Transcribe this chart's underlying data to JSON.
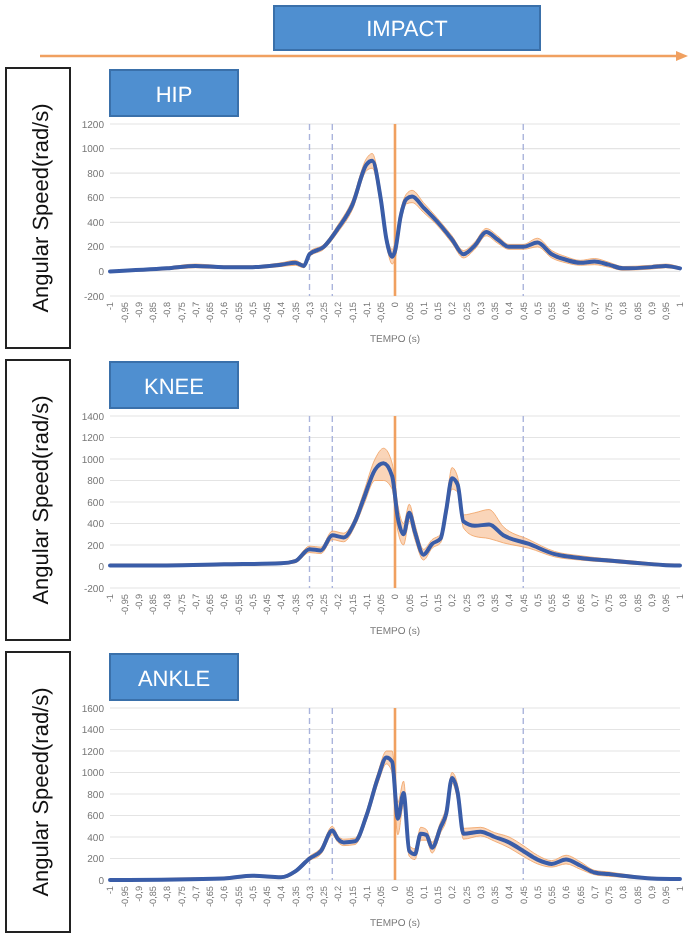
{
  "chart_data": [
    {
      "type": "line",
      "title": "HIP",
      "xlabel": "TEMPO (s)",
      "ylabel": "Angular Speed(rad/s)",
      "annotations": [
        "IMPACT"
      ],
      "xlim": [
        -1,
        1
      ],
      "ylim": [
        -200,
        1200
      ],
      "yticks": [
        -200,
        0,
        200,
        400,
        600,
        800,
        1000,
        1200
      ],
      "xticks": [
        -1,
        {
          "value": -0.95,
          "label": "-0,95"
        },
        {
          "value": -0.9,
          "label": "-0,9"
        },
        {
          "value": -0.85,
          "label": "-0,85"
        },
        {
          "value": -0.8,
          "label": "-0,8"
        },
        {
          "value": -0.75,
          "label": "-0,75"
        },
        {
          "value": -0.7,
          "label": "-0,7"
        },
        {
          "value": -0.65,
          "label": "-0,65"
        },
        {
          "value": -0.6,
          "label": "-0,6"
        },
        {
          "value": -0.55,
          "label": "-0,55"
        },
        {
          "value": -0.5,
          "label": "-0,5"
        },
        {
          "value": -0.45,
          "label": "-0,45"
        },
        {
          "value": -0.4,
          "label": "-0,4"
        },
        {
          "value": -0.35,
          "label": "-0,35"
        },
        {
          "value": -0.3,
          "label": "-0,3"
        },
        {
          "value": -0.25,
          "label": "-0,25"
        },
        {
          "value": -0.2,
          "label": "-0,2"
        },
        {
          "value": -0.15,
          "label": "-0,15"
        },
        {
          "value": -0.1,
          "label": "-0,1"
        },
        {
          "value": -0.05,
          "label": "-0,05"
        },
        0,
        {
          "value": 0.05,
          "label": "0,05"
        },
        {
          "value": 0.1,
          "label": "0,1"
        },
        {
          "value": 0.15,
          "label": "0,15"
        },
        {
          "value": 0.2,
          "label": "0,2"
        },
        {
          "value": 0.25,
          "label": "0,25"
        },
        {
          "value": 0.3,
          "label": "0,3"
        },
        {
          "value": 0.35,
          "label": "0,35"
        },
        {
          "value": 0.4,
          "label": "0,4"
        },
        {
          "value": 0.45,
          "label": "0,45"
        },
        {
          "value": 0.5,
          "label": "0,5"
        },
        {
          "value": 0.55,
          "label": "0,55"
        },
        {
          "value": 0.6,
          "label": "0,6"
        },
        {
          "value": 0.65,
          "label": "0,65"
        },
        {
          "value": 0.7,
          "label": "0,7"
        },
        {
          "value": 0.75,
          "label": "0,75"
        },
        {
          "value": 0.8,
          "label": "0,8"
        },
        {
          "value": 0.85,
          "label": "0,85"
        },
        {
          "value": 0.9,
          "label": "0,9"
        },
        {
          "value": 0.95,
          "label": "0,95"
        },
        1
      ],
      "grid": "y",
      "ref_lines": [
        {
          "axis": "x",
          "value": -0.3,
          "color": "#aab4dc",
          "line_style": "dashed"
        },
        {
          "axis": "x",
          "value": -0.22,
          "color": "#aab4dc",
          "line_style": "dashed"
        },
        {
          "axis": "x",
          "value": 0,
          "color": "#f0a060",
          "line_style": "solid"
        },
        {
          "axis": "x",
          "value": 0.45,
          "color": "#aab4dc",
          "line_style": "dashed"
        }
      ],
      "series": [
        {
          "color": "#3a5da8",
          "x": [
            -1,
            -0.8,
            -0.7,
            -0.6,
            -0.5,
            -0.4,
            -0.35,
            -0.32,
            -0.3,
            -0.25,
            -0.2,
            -0.15,
            -0.1,
            -0.08,
            -0.05,
            -0.03,
            -0.01,
            0,
            0.02,
            0.04,
            0.06,
            0.1,
            0.15,
            0.2,
            0.24,
            0.28,
            0.32,
            0.36,
            0.4,
            0.45,
            0.5,
            0.55,
            0.6,
            0.65,
            0.7,
            0.75,
            0.8,
            0.9,
            0.95,
            1
          ],
          "values": [
            0,
            25,
            45,
            35,
            35,
            55,
            70,
            45,
            140,
            200,
            350,
            540,
            870,
            900,
            590,
            260,
            120,
            165,
            450,
            590,
            610,
            520,
            400,
            260,
            140,
            210,
            320,
            260,
            200,
            200,
            235,
            140,
            95,
            70,
            80,
            55,
            25,
            35,
            45,
            25
          ],
          "lower": [
            -5,
            15,
            30,
            25,
            25,
            40,
            50,
            30,
            120,
            180,
            320,
            500,
            820,
            840,
            540,
            220,
            60,
            100,
            400,
            550,
            560,
            480,
            370,
            230,
            110,
            180,
            290,
            230,
            180,
            180,
            200,
            110,
            70,
            50,
            55,
            35,
            10,
            20,
            30,
            15
          ],
          "upper": [
            5,
            35,
            60,
            45,
            45,
            70,
            90,
            60,
            160,
            220,
            380,
            580,
            920,
            960,
            640,
            300,
            180,
            230,
            500,
            630,
            660,
            560,
            430,
            290,
            170,
            240,
            350,
            290,
            220,
            220,
            270,
            170,
            120,
            90,
            105,
            75,
            40,
            50,
            60,
            35
          ]
        }
      ]
    },
    {
      "type": "line",
      "title": "KNEE",
      "xlabel": "TEMPO (s)",
      "ylabel": "Angular Speed(rad/s)",
      "xlim": [
        -1,
        1
      ],
      "ylim": [
        -200,
        1400
      ],
      "yticks": [
        -200,
        0,
        200,
        400,
        600,
        800,
        1000,
        1200,
        1400
      ],
      "xticks": [
        -1,
        {
          "value": -0.95,
          "label": "-0,95"
        },
        {
          "value": -0.9,
          "label": "-0,9"
        },
        {
          "value": -0.85,
          "label": "-0,85"
        },
        {
          "value": -0.8,
          "label": "-0,8"
        },
        {
          "value": -0.75,
          "label": "-0,75"
        },
        {
          "value": -0.7,
          "label": "-0,7"
        },
        {
          "value": -0.65,
          "label": "-0,65"
        },
        {
          "value": -0.6,
          "label": "-0,6"
        },
        {
          "value": -0.55,
          "label": "-0,55"
        },
        {
          "value": -0.5,
          "label": "-0,5"
        },
        {
          "value": -0.45,
          "label": "-0,45"
        },
        {
          "value": -0.4,
          "label": "-0,4"
        },
        {
          "value": -0.35,
          "label": "-0,35"
        },
        {
          "value": -0.3,
          "label": "-0,3"
        },
        {
          "value": -0.25,
          "label": "-0,25"
        },
        {
          "value": -0.2,
          "label": "-0,2"
        },
        {
          "value": -0.15,
          "label": "-0,15"
        },
        {
          "value": -0.1,
          "label": "-0,1"
        },
        {
          "value": -0.05,
          "label": "-0,05"
        },
        0,
        {
          "value": 0.05,
          "label": "0,05"
        },
        {
          "value": 0.1,
          "label": "0,1"
        },
        {
          "value": 0.15,
          "label": "0,15"
        },
        {
          "value": 0.2,
          "label": "0,2"
        },
        {
          "value": 0.25,
          "label": "0,25"
        },
        {
          "value": 0.3,
          "label": "0,3"
        },
        {
          "value": 0.35,
          "label": "0,35"
        },
        {
          "value": 0.4,
          "label": "0,4"
        },
        {
          "value": 0.45,
          "label": "0,45"
        },
        {
          "value": 0.5,
          "label": "0,5"
        },
        {
          "value": 0.55,
          "label": "0,55"
        },
        {
          "value": 0.6,
          "label": "0,6"
        },
        {
          "value": 0.65,
          "label": "0,65"
        },
        {
          "value": 0.7,
          "label": "0,7"
        },
        {
          "value": 0.75,
          "label": "0,75"
        },
        {
          "value": 0.8,
          "label": "0,8"
        },
        {
          "value": 0.85,
          "label": "0,85"
        },
        {
          "value": 0.9,
          "label": "0,9"
        },
        {
          "value": 0.95,
          "label": "0,95"
        },
        1
      ],
      "grid": "y",
      "ref_lines": [
        {
          "axis": "x",
          "value": -0.3,
          "color": "#aab4dc",
          "line_style": "dashed"
        },
        {
          "axis": "x",
          "value": -0.22,
          "color": "#aab4dc",
          "line_style": "dashed"
        },
        {
          "axis": "x",
          "value": 0,
          "color": "#f0a060",
          "line_style": "solid"
        },
        {
          "axis": "x",
          "value": 0.45,
          "color": "#aab4dc",
          "line_style": "dashed"
        }
      ],
      "series": [
        {
          "color": "#3a5da8",
          "x": [
            -1,
            -0.8,
            -0.6,
            -0.4,
            -0.35,
            -0.3,
            -0.26,
            -0.22,
            -0.18,
            -0.14,
            -0.11,
            -0.07,
            -0.04,
            -0.01,
            0.01,
            0.03,
            0.05,
            0.07,
            0.1,
            0.13,
            0.16,
            0.18,
            0.2,
            0.22,
            0.24,
            0.28,
            0.33,
            0.38,
            0.47,
            0.56,
            0.65,
            0.75,
            0.84,
            0.94,
            1
          ],
          "values": [
            10,
            10,
            20,
            30,
            50,
            160,
            150,
            290,
            270,
            420,
            630,
            900,
            960,
            840,
            450,
            300,
            500,
            320,
            110,
            210,
            260,
            530,
            820,
            760,
            420,
            380,
            390,
            290,
            210,
            115,
            80,
            55,
            35,
            15,
            10
          ],
          "lower": [
            0,
            0,
            10,
            20,
            35,
            130,
            120,
            250,
            230,
            380,
            570,
            800,
            800,
            720,
            330,
            200,
            420,
            250,
            60,
            170,
            220,
            470,
            720,
            690,
            360,
            280,
            260,
            220,
            170,
            90,
            60,
            40,
            20,
            5,
            0
          ],
          "upper": [
            20,
            20,
            30,
            40,
            65,
            190,
            180,
            330,
            310,
            460,
            690,
            1000,
            1100,
            960,
            570,
            400,
            580,
            390,
            160,
            250,
            300,
            590,
            920,
            830,
            480,
            500,
            530,
            370,
            250,
            140,
            100,
            70,
            50,
            25,
            20
          ]
        }
      ]
    },
    {
      "type": "line",
      "title": "ANKLE",
      "xlabel": "TEMPO (s)",
      "ylabel": "Angular Speed(rad/s)",
      "xlim": [
        -1,
        1
      ],
      "ylim": [
        0,
        1600
      ],
      "yticks": [
        0,
        200,
        400,
        600,
        800,
        1000,
        1200,
        1400,
        1600
      ],
      "xticks": [
        -1,
        {
          "value": -0.95,
          "label": "-0,95"
        },
        {
          "value": -0.9,
          "label": "-0,9"
        },
        {
          "value": -0.85,
          "label": "-0,85"
        },
        {
          "value": -0.8,
          "label": "-0,8"
        },
        {
          "value": -0.75,
          "label": "-0,75"
        },
        {
          "value": -0.7,
          "label": "-0,7"
        },
        {
          "value": -0.65,
          "label": "-0,65"
        },
        {
          "value": -0.6,
          "label": "-0,6"
        },
        {
          "value": -0.55,
          "label": "-0,55"
        },
        {
          "value": -0.5,
          "label": "-0,5"
        },
        {
          "value": -0.45,
          "label": "-0,45"
        },
        {
          "value": -0.4,
          "label": "-0,4"
        },
        {
          "value": -0.35,
          "label": "-0,35"
        },
        {
          "value": -0.3,
          "label": "-0,3"
        },
        {
          "value": -0.25,
          "label": "-0,25"
        },
        {
          "value": -0.2,
          "label": "-0,2"
        },
        {
          "value": -0.15,
          "label": "-0,15"
        },
        {
          "value": -0.1,
          "label": "-0,1"
        },
        {
          "value": -0.05,
          "label": "-0,05"
        },
        0,
        {
          "value": 0.05,
          "label": "0,05"
        },
        {
          "value": 0.1,
          "label": "0,1"
        },
        {
          "value": 0.15,
          "label": "0,15"
        },
        {
          "value": 0.2,
          "label": "0,2"
        },
        {
          "value": 0.25,
          "label": "0,25"
        },
        {
          "value": 0.3,
          "label": "0,3"
        },
        {
          "value": 0.35,
          "label": "0,35"
        },
        {
          "value": 0.4,
          "label": "0,4"
        },
        {
          "value": 0.45,
          "label": "0,45"
        },
        {
          "value": 0.5,
          "label": "0,5"
        },
        {
          "value": 0.55,
          "label": "0,55"
        },
        {
          "value": 0.6,
          "label": "0,6"
        },
        {
          "value": 0.65,
          "label": "0,65"
        },
        {
          "value": 0.7,
          "label": "0,7"
        },
        {
          "value": 0.75,
          "label": "0,75"
        },
        {
          "value": 0.8,
          "label": "0,8"
        },
        {
          "value": 0.85,
          "label": "0,85"
        },
        {
          "value": 0.9,
          "label": "0,9"
        },
        {
          "value": 0.95,
          "label": "0,95"
        },
        1
      ],
      "grid": "y",
      "ref_lines": [
        {
          "axis": "x",
          "value": -0.3,
          "color": "#aab4dc",
          "line_style": "dashed"
        },
        {
          "axis": "x",
          "value": -0.22,
          "color": "#aab4dc",
          "line_style": "dashed"
        },
        {
          "axis": "x",
          "value": 0,
          "color": "#f0a060",
          "line_style": "solid"
        },
        {
          "axis": "x",
          "value": 0.45,
          "color": "#aab4dc",
          "line_style": "dashed"
        }
      ],
      "series": [
        {
          "color": "#3a5da8",
          "x": [
            -1,
            -0.6,
            -0.5,
            -0.4,
            -0.35,
            -0.3,
            -0.26,
            -0.22,
            -0.2,
            -0.18,
            -0.14,
            -0.1,
            -0.06,
            -0.03,
            -0.01,
            0.01,
            0.03,
            0.05,
            0.07,
            0.09,
            0.11,
            0.13,
            0.16,
            0.18,
            0.2,
            0.22,
            0.24,
            0.3,
            0.35,
            0.4,
            0.45,
            0.5,
            0.55,
            0.6,
            0.65,
            0.7,
            0.75,
            0.8,
            0.9,
            1
          ],
          "values": [
            0,
            15,
            40,
            25,
            80,
            200,
            270,
            460,
            380,
            350,
            360,
            600,
            950,
            1140,
            1100,
            570,
            810,
            270,
            240,
            430,
            420,
            300,
            490,
            620,
            950,
            810,
            430,
            450,
            400,
            350,
            270,
            190,
            150,
            190,
            135,
            70,
            55,
            40,
            15,
            10
          ],
          "lower": [
            0,
            5,
            30,
            15,
            65,
            180,
            240,
            420,
            350,
            320,
            330,
            560,
            900,
            1080,
            1000,
            420,
            700,
            220,
            190,
            370,
            370,
            250,
            440,
            560,
            900,
            740,
            380,
            410,
            360,
            300,
            220,
            150,
            120,
            150,
            100,
            50,
            35,
            25,
            5,
            0
          ],
          "upper": [
            10,
            25,
            50,
            35,
            95,
            220,
            300,
            500,
            410,
            380,
            390,
            640,
            1000,
            1200,
            1200,
            720,
            920,
            320,
            290,
            490,
            470,
            350,
            540,
            680,
            1000,
            880,
            480,
            490,
            440,
            400,
            320,
            230,
            180,
            230,
            170,
            90,
            75,
            55,
            25,
            20
          ]
        }
      ]
    }
  ]
}
